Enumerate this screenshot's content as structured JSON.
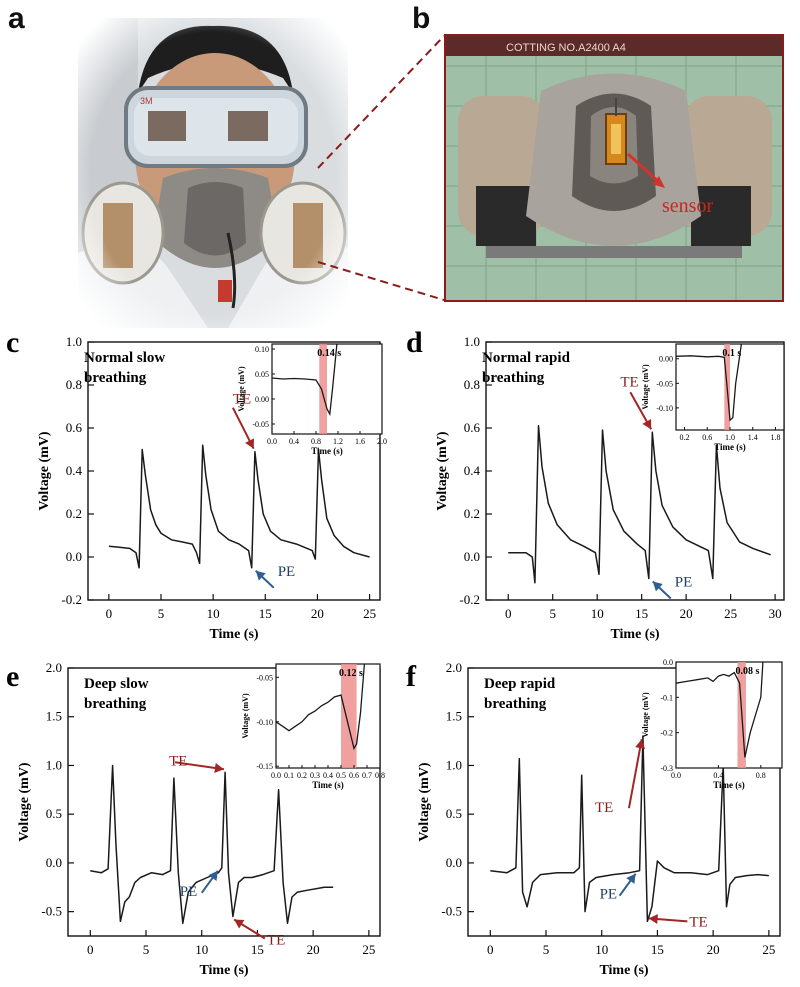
{
  "panels": {
    "a": {
      "letter": "a"
    },
    "b": {
      "letter": "b",
      "header": "COTTING NO.A2400 A4",
      "sensor_label": "sensor"
    }
  },
  "colors": {
    "trace": "#1a1a1a",
    "arrow_red": "#a32626",
    "arrow_blue": "#2f5f8f",
    "highlight": "#ef8f8f",
    "zoom_line": "#8b1a1a"
  },
  "chart_data": [
    {
      "id": "c",
      "type": "line",
      "letter": "c",
      "title": "Normal slow breathing",
      "xlabel": "Time (s)",
      "ylabel": "Voltage (mV)",
      "xlim": [
        -2,
        26
      ],
      "ylim": [
        -0.2,
        1.0
      ],
      "xticks": [
        "0",
        "5",
        "10",
        "15",
        "20",
        "25"
      ],
      "yticks": [
        "-0.2",
        "0.0",
        "0.2",
        "0.4",
        "0.6",
        "0.8",
        "1.0"
      ],
      "x": [
        0,
        1,
        2,
        2.6,
        2.9,
        3.2,
        3.5,
        4,
        4.5,
        5,
        6,
        7,
        8,
        8.4,
        8.7,
        9.0,
        9.3,
        9.8,
        10.5,
        11.5,
        12.5,
        13.4,
        13.7,
        14.0,
        14.3,
        14.8,
        15.5,
        16.5,
        18,
        19.5,
        19.8,
        20.1,
        20.4,
        20.9,
        21.6,
        22.5,
        23.5,
        25
      ],
      "y": [
        0.05,
        0.045,
        0.04,
        0.02,
        -0.05,
        0.5,
        0.38,
        0.22,
        0.15,
        0.11,
        0.08,
        0.07,
        0.06,
        0.02,
        -0.03,
        0.52,
        0.38,
        0.22,
        0.12,
        0.08,
        0.06,
        0.03,
        -0.05,
        0.49,
        0.36,
        0.2,
        0.12,
        0.08,
        0.06,
        0.03,
        -0.01,
        0.5,
        0.36,
        0.18,
        0.1,
        0.05,
        0.02,
        0.0
      ],
      "annotations": [
        {
          "label": "TE",
          "x": 14.0,
          "y": 0.49
        },
        {
          "label": "PE",
          "x": 13.7,
          "y": -0.05
        }
      ],
      "inset": {
        "xlabel": "Time (s)",
        "ylabel": "Voltage (mV)",
        "xlim": [
          0,
          2.0
        ],
        "ylim": [
          -0.07,
          0.11
        ],
        "xticks": [
          "0.0",
          "0.4",
          "0.8",
          "1.2",
          "1.6",
          "2.0"
        ],
        "yticks": [
          "-0.05",
          "0.00",
          "0.05",
          "0.10"
        ],
        "highlight_label": "0.14 s",
        "highlight_range": [
          0.86,
          1.0
        ],
        "x": [
          0,
          0.2,
          0.4,
          0.6,
          0.8,
          0.9,
          1.0,
          1.05,
          1.1,
          1.18
        ],
        "y": [
          0.042,
          0.04,
          0.041,
          0.04,
          0.038,
          0.02,
          -0.02,
          -0.03,
          0.02,
          0.11
        ]
      }
    },
    {
      "id": "d",
      "type": "line",
      "letter": "d",
      "title": "Normal rapid breathing",
      "xlabel": "Time (s)",
      "ylabel": "Voltage (mV)",
      "xlim": [
        -2.5,
        31
      ],
      "ylim": [
        -0.2,
        1.0
      ],
      "xticks": [
        "0",
        "5",
        "10",
        "15",
        "20",
        "25",
        "30"
      ],
      "yticks": [
        "-0.2",
        "0.0",
        "0.2",
        "0.4",
        "0.6",
        "0.8",
        "1.0"
      ],
      "x": [
        0,
        1,
        2,
        2.7,
        3.0,
        3.4,
        3.8,
        4.5,
        5.5,
        7,
        8.5,
        9.8,
        10.2,
        10.6,
        11.0,
        11.8,
        13,
        14.5,
        15.4,
        15.8,
        16.2,
        16.6,
        17.3,
        18.5,
        20,
        21.5,
        22.5,
        23.0,
        23.4,
        23.8,
        24.6,
        26,
        27.5,
        29.5
      ],
      "y": [
        0.02,
        0.02,
        0.02,
        0.0,
        -0.12,
        0.61,
        0.42,
        0.25,
        0.15,
        0.08,
        0.05,
        0.02,
        -0.08,
        0.59,
        0.4,
        0.22,
        0.12,
        0.06,
        0.03,
        -0.1,
        0.58,
        0.4,
        0.24,
        0.14,
        0.08,
        0.05,
        0.03,
        -0.1,
        0.52,
        0.32,
        0.16,
        0.07,
        0.04,
        0.01
      ],
      "annotations": [
        {
          "label": "TE",
          "x": 16.2,
          "y": 0.58
        },
        {
          "label": "PE",
          "x": 15.8,
          "y": -0.1
        }
      ],
      "inset": {
        "xlabel": "Time (s)",
        "ylabel": "Voltage (mV)",
        "xlim": [
          0.05,
          1.95
        ],
        "ylim": [
          -0.145,
          0.03
        ],
        "xticks": [
          "0.2",
          "0.6",
          "1.0",
          "1.4",
          "1.8"
        ],
        "yticks": [
          "0.00",
          "-0.05",
          "-0.10"
        ],
        "highlight_label": "0.1 s",
        "highlight_range": [
          0.9,
          1.0
        ],
        "x": [
          0.05,
          0.3,
          0.6,
          0.8,
          0.9,
          0.95,
          1.0,
          1.05,
          1.1,
          1.2
        ],
        "y": [
          0.005,
          0.006,
          0.004,
          0.005,
          0.003,
          -0.06,
          -0.125,
          -0.12,
          -0.05,
          0.03
        ]
      }
    },
    {
      "id": "e",
      "type": "line",
      "letter": "e",
      "title": "Deep slow breathing",
      "xlabel": "Time (s)",
      "ylabel": "Voltage (mV)",
      "xlim": [
        -2,
        26
      ],
      "ylim": [
        -0.75,
        2.0
      ],
      "xticks": [
        "0",
        "5",
        "10",
        "15",
        "20",
        "25"
      ],
      "yticks": [
        "-0.5",
        "0.0",
        "0.5",
        "1.0",
        "1.5",
        "2.0"
      ],
      "x": [
        0,
        1,
        1.6,
        2.0,
        2.3,
        2.7,
        3.1,
        3.5,
        4.0,
        4.5,
        5.5,
        6.5,
        7.2,
        7.5,
        7.9,
        8.3,
        8.8,
        9.5,
        10.5,
        11.5,
        11.8,
        12.1,
        12.4,
        12.8,
        13.3,
        13.8,
        14.5,
        15.5,
        16.5,
        16.9,
        17.3,
        17.7,
        18.1,
        18.6,
        19.5,
        21,
        21.8
      ],
      "y": [
        -0.08,
        -0.1,
        -0.06,
        1.0,
        0.2,
        -0.6,
        -0.4,
        -0.35,
        -0.2,
        -0.15,
        -0.1,
        -0.12,
        -0.08,
        0.87,
        -0.1,
        -0.62,
        -0.3,
        -0.2,
        -0.15,
        -0.1,
        -0.05,
        0.93,
        -0.1,
        -0.55,
        -0.2,
        -0.15,
        -0.15,
        -0.12,
        -0.08,
        0.75,
        -0.2,
        -0.62,
        -0.35,
        -0.3,
        -0.28,
        -0.25,
        -0.25
      ],
      "annotations": [
        {
          "label": "TE",
          "x": 12.1,
          "y": 0.93
        },
        {
          "label": "PE",
          "x": 11.8,
          "y": -0.05
        },
        {
          "label": "TE",
          "x": 12.8,
          "y": -0.55
        }
      ],
      "inset": {
        "xlabel": "Time (s)",
        "ylabel": "Voltage (mV)",
        "xlim": [
          0,
          0.8
        ],
        "ylim": [
          -0.152,
          -0.035
        ],
        "xticks": [
          "0.0",
          "0.1",
          "0.2",
          "0.3",
          "0.4",
          "0.5",
          "0.6",
          "0.7",
          "0.8"
        ],
        "yticks": [
          "-0.05",
          "-0.10",
          "-0.15"
        ],
        "highlight_label": "0.12 s",
        "highlight_range": [
          0.5,
          0.62
        ],
        "x": [
          0,
          0.05,
          0.1,
          0.15,
          0.2,
          0.25,
          0.3,
          0.35,
          0.4,
          0.45,
          0.5,
          0.55,
          0.6,
          0.62,
          0.65,
          0.68
        ],
        "y": [
          -0.1,
          -0.105,
          -0.11,
          -0.105,
          -0.1,
          -0.092,
          -0.088,
          -0.082,
          -0.078,
          -0.072,
          -0.07,
          -0.1,
          -0.13,
          -0.125,
          -0.09,
          -0.035
        ]
      }
    },
    {
      "id": "f",
      "type": "line",
      "letter": "f",
      "title": "Deep rapid breathing",
      "xlabel": "Time (s)",
      "ylabel": "Voltage (mV)",
      "xlim": [
        -2,
        26
      ],
      "ylim": [
        -0.75,
        2.0
      ],
      "xticks": [
        "0",
        "5",
        "10",
        "15",
        "20",
        "25"
      ],
      "yticks": [
        "-0.5",
        "0.0",
        "0.5",
        "1.0",
        "1.5",
        "2.0"
      ],
      "x": [
        0,
        1.5,
        2.3,
        2.6,
        2.9,
        3.3,
        3.8,
        4.5,
        6,
        7.5,
        8.0,
        8.2,
        8.5,
        8.9,
        9.5,
        11,
        12.5,
        13.4,
        13.7,
        14.1,
        14.5,
        15.0,
        15.6,
        16.5,
        18,
        19.5,
        20.5,
        20.9,
        21.2,
        21.5,
        22,
        23,
        24,
        25
      ],
      "y": [
        -0.08,
        -0.1,
        -0.05,
        1.07,
        -0.3,
        -0.45,
        -0.2,
        -0.12,
        -0.1,
        -0.1,
        -0.05,
        0.9,
        -0.5,
        -0.2,
        -0.15,
        -0.12,
        -0.1,
        -0.08,
        1.3,
        -0.6,
        -0.45,
        0.02,
        -0.05,
        -0.1,
        -0.1,
        -0.12,
        -0.08,
        1.0,
        -0.45,
        -0.22,
        -0.15,
        -0.13,
        -0.12,
        -0.13
      ],
      "annotations": [
        {
          "label": "TE",
          "x": 13.7,
          "y": 1.3
        },
        {
          "label": "PE",
          "x": 13.4,
          "y": -0.08
        },
        {
          "label": "TE",
          "x": 14.1,
          "y": -0.6
        }
      ],
      "inset": {
        "xlabel": "Time (s)",
        "ylabel": "Voltage (mV)",
        "xlim": [
          0,
          1.0
        ],
        "ylim": [
          -0.3,
          0.0
        ],
        "xticks": [
          "0.0",
          "0.4",
          "0.8"
        ],
        "yticks": [
          "0.0",
          "-0.1",
          "-0.2",
          "-0.3"
        ],
        "highlight_label": "0.08 s",
        "highlight_range": [
          0.58,
          0.66
        ],
        "x": [
          0,
          0.1,
          0.2,
          0.3,
          0.35,
          0.4,
          0.45,
          0.5,
          0.55,
          0.6,
          0.65,
          0.7,
          0.75,
          0.8,
          0.82
        ],
        "y": [
          -0.06,
          -0.055,
          -0.05,
          -0.045,
          -0.055,
          -0.04,
          -0.035,
          -0.04,
          -0.03,
          -0.06,
          -0.27,
          -0.2,
          -0.15,
          -0.1,
          0.0
        ]
      }
    }
  ]
}
